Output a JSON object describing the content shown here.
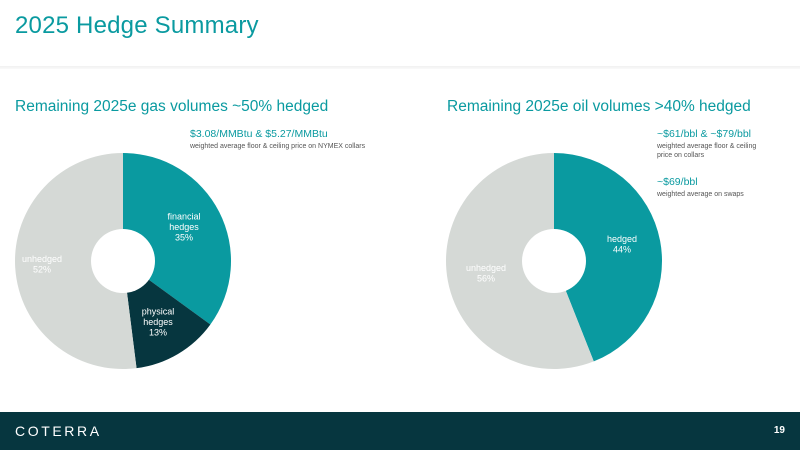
{
  "header": {
    "title": "2025 Hedge Summary"
  },
  "colors": {
    "teal": "#0a9aa0",
    "dark": "#06363f",
    "gray": "#d5d9d6",
    "white": "#ffffff"
  },
  "gas": {
    "title": "Remaining 2025e gas volumes ~50% hedged",
    "note_main": "$3.08/MMBtu & $5.27/MMBtu",
    "note_sub": "weighted average floor & ceiling price on NYMEX collars"
  },
  "oil": {
    "title": "Remaining 2025e oil volumes >40% hedged",
    "note1_main": "~$61/bbl & ~$79/bbl",
    "note1_sub": "weighted average floor & ceiling price on collars",
    "note2_main": "~$69/bbl",
    "note2_sub": "weighted average on swaps"
  },
  "chart_data": [
    {
      "type": "pie",
      "title": "Remaining 2025e gas volumes ~50% hedged",
      "categories": [
        "financial hedges",
        "physical hedges",
        "unhedged"
      ],
      "values": [
        35,
        13,
        52
      ],
      "labels": [
        "35%",
        "13%",
        "52%"
      ],
      "colors": [
        "#0a9aa0",
        "#06363f",
        "#d5d9d6"
      ],
      "donut": true
    },
    {
      "type": "pie",
      "title": "Remaining 2025e oil volumes >40% hedged",
      "categories": [
        "hedged",
        "unhedged"
      ],
      "values": [
        44,
        56
      ],
      "labels": [
        "44%",
        "56%"
      ],
      "colors": [
        "#0a9aa0",
        "#d5d9d6"
      ],
      "donut": true
    }
  ],
  "footer": {
    "logo": "COTERRA",
    "page_number": "19"
  }
}
